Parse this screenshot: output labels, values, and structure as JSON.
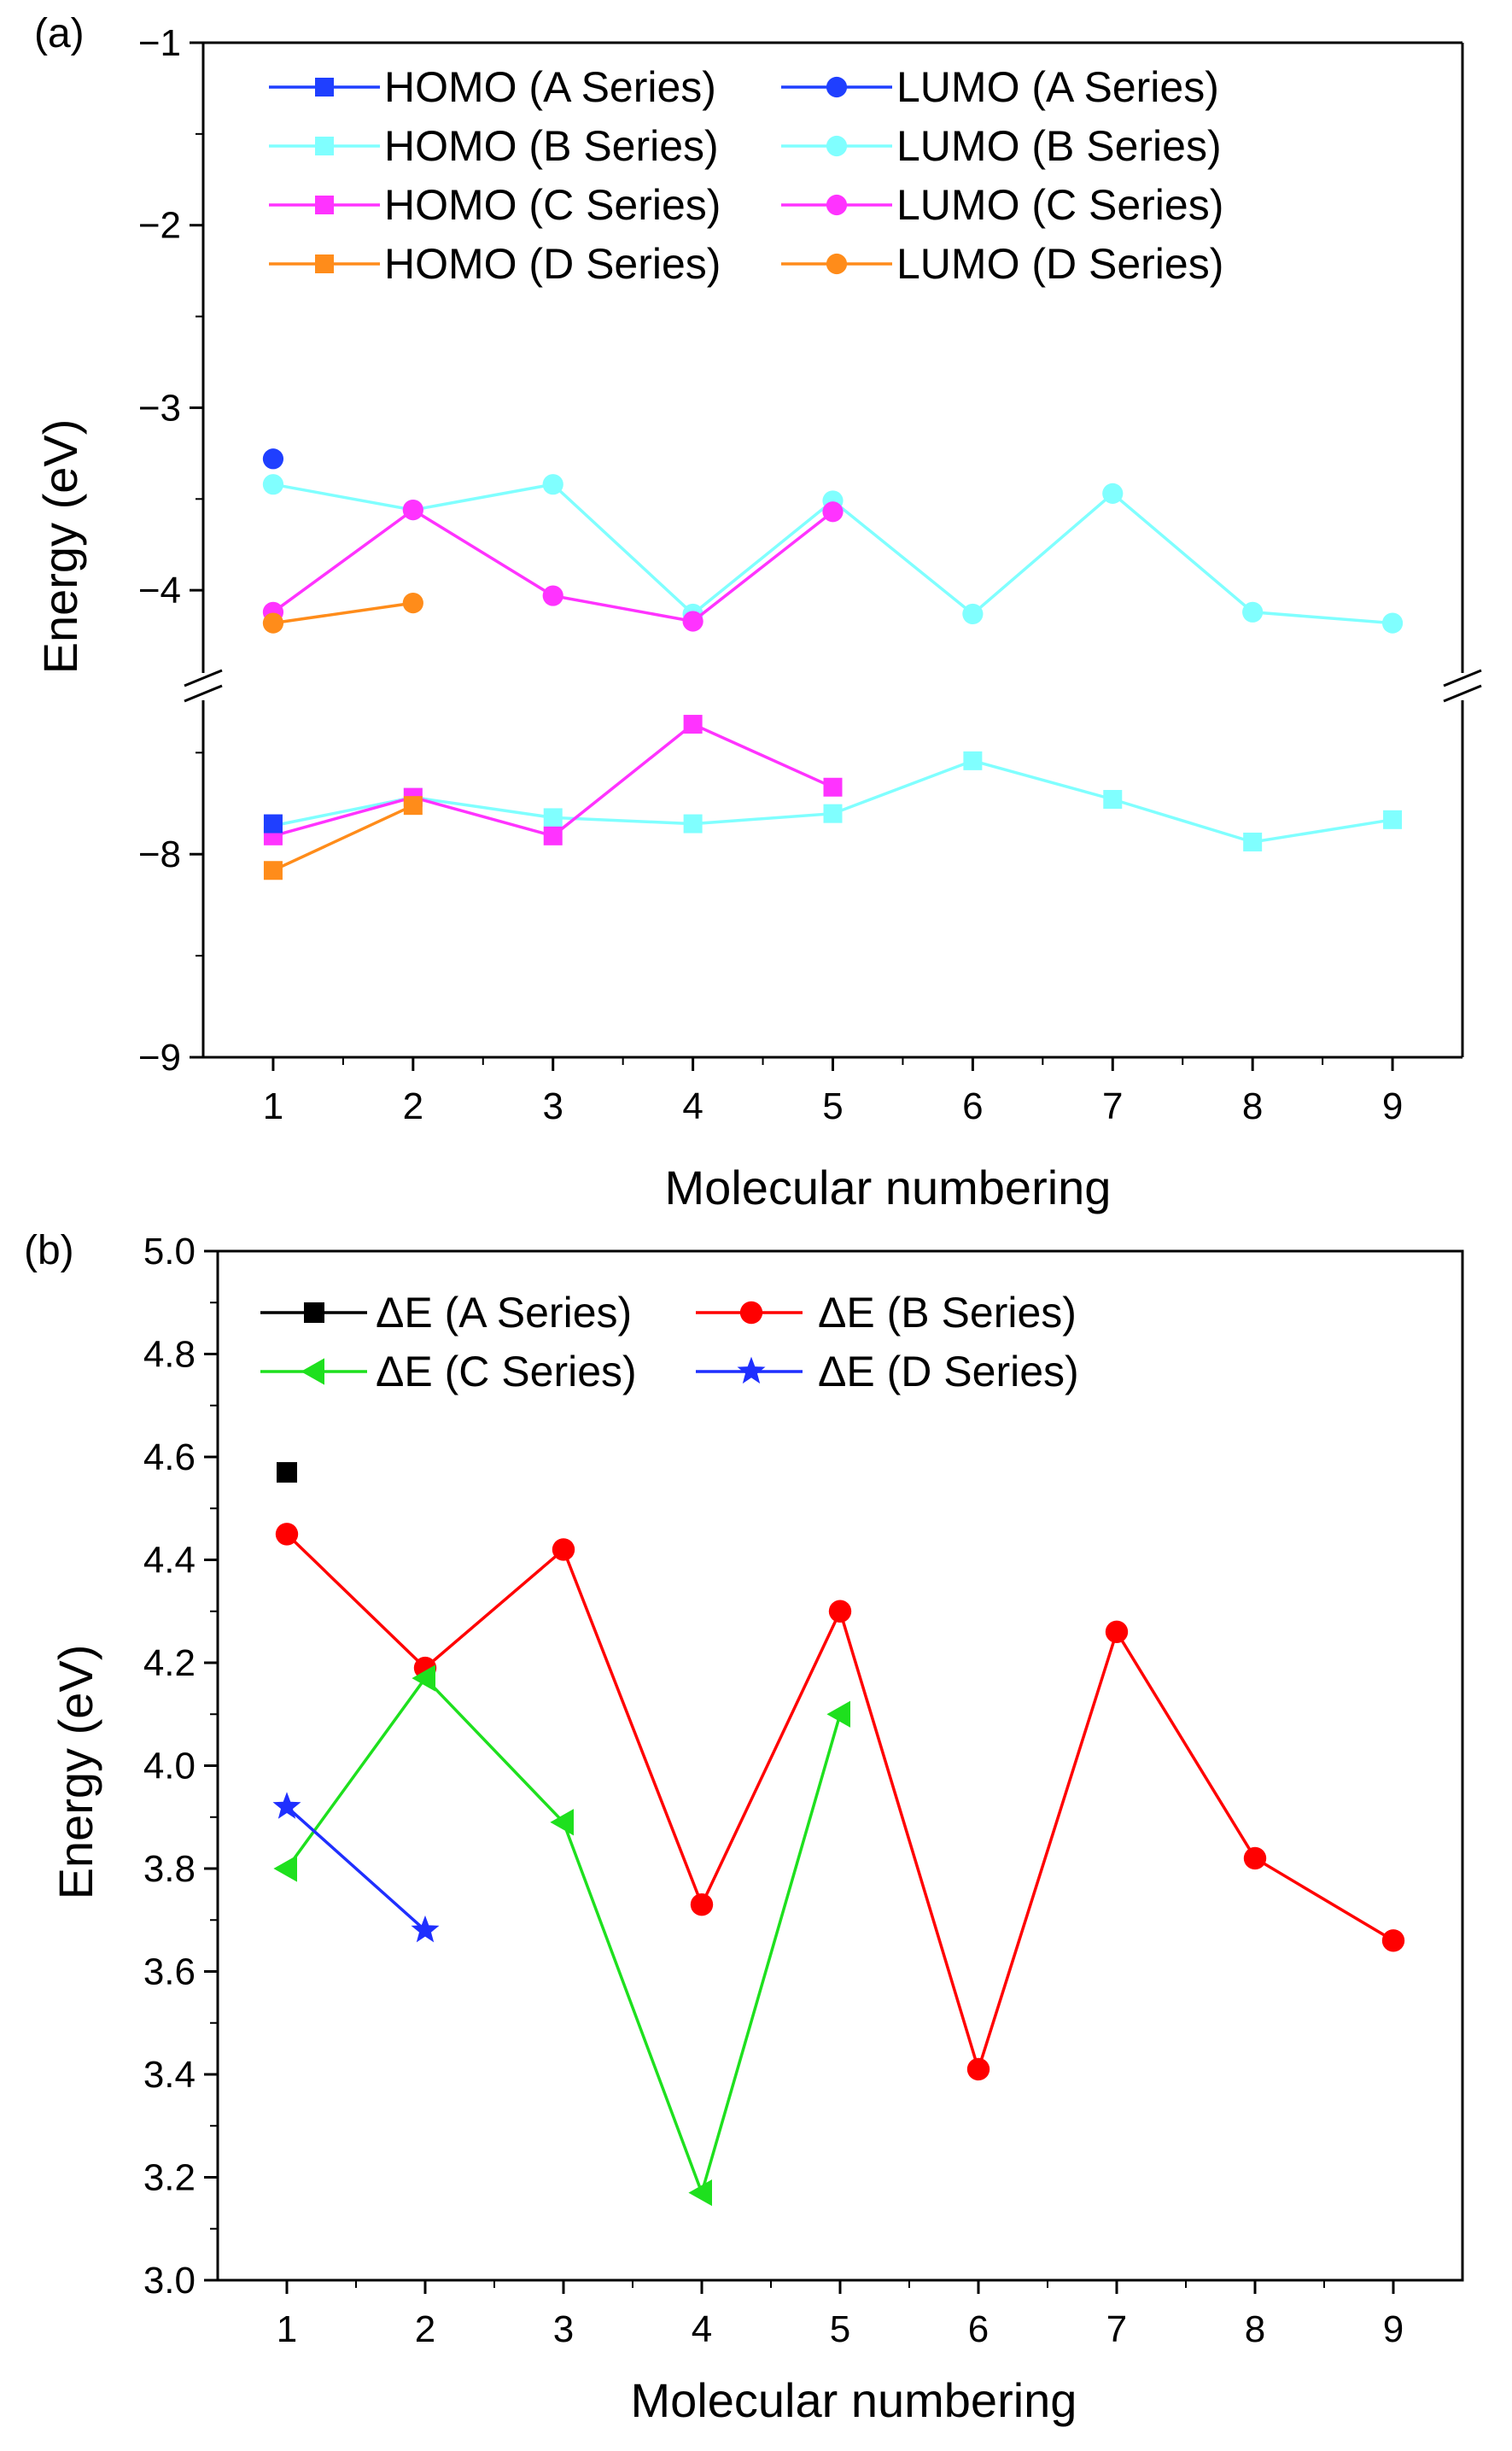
{
  "chart_data": [
    {
      "type": "line",
      "panel_label": "(a)",
      "xlabel": "Molecular numbering",
      "ylabel": "Energy (eV)",
      "xlim": [
        0.5,
        9.5
      ],
      "y_axis_break": true,
      "ylim_upper": [
        -4.5,
        -1
      ],
      "ylim_lower": [
        -9,
        -7.2
      ],
      "x_ticks": [
        "1",
        "2",
        "3",
        "4",
        "5",
        "6",
        "7",
        "8",
        "9"
      ],
      "y_ticks_upper": [
        "−1",
        "−2",
        "−3",
        "−4"
      ],
      "y_ticks_lower": [
        "−8",
        "−9"
      ],
      "legend_position": "top",
      "series": [
        {
          "name": "HOMO (A Series)",
          "color": "#1f3fff",
          "marker": "square",
          "x": [
            1
          ],
          "y": [
            -7.85
          ]
        },
        {
          "name": "HOMO (B Series)",
          "color": "#80ffff",
          "marker": "square",
          "x": [
            1,
            2,
            3,
            4,
            5,
            6,
            7,
            8,
            9
          ],
          "y": [
            -7.86,
            -7.72,
            -7.82,
            -7.85,
            -7.8,
            -7.54,
            -7.73,
            -7.94,
            -7.83
          ]
        },
        {
          "name": "HOMO (C Series)",
          "color": "#ff33ff",
          "marker": "square",
          "x": [
            1,
            2,
            3,
            4,
            5
          ],
          "y": [
            -7.91,
            -7.72,
            -7.91,
            -7.36,
            -7.67
          ]
        },
        {
          "name": "HOMO (D Series)",
          "color": "#ff8c1a",
          "marker": "square",
          "x": [
            1,
            2
          ],
          "y": [
            -8.08,
            -7.76
          ]
        },
        {
          "name": "LUMO (A Series)",
          "color": "#1f3fff",
          "marker": "circle",
          "x": [
            1
          ],
          "y": [
            -3.28
          ]
        },
        {
          "name": "LUMO (B Series)",
          "color": "#80ffff",
          "marker": "circle",
          "x": [
            1,
            2,
            3,
            4,
            5,
            6,
            7,
            8,
            9
          ],
          "y": [
            -3.42,
            -3.56,
            -3.42,
            -4.13,
            -3.51,
            -4.13,
            -3.47,
            -4.12,
            -4.18
          ]
        },
        {
          "name": "LUMO (C Series)",
          "color": "#ff33ff",
          "marker": "circle",
          "x": [
            1,
            2,
            3,
            4,
            5
          ],
          "y": [
            -4.12,
            -3.56,
            -4.03,
            -4.17,
            -3.57
          ]
        },
        {
          "name": "LUMO (D Series)",
          "color": "#ff8c1a",
          "marker": "circle",
          "x": [
            1,
            2
          ],
          "y": [
            -4.18,
            -4.07
          ]
        }
      ]
    },
    {
      "type": "line",
      "panel_label": "(b)",
      "xlabel": "Molecular numbering",
      "ylabel": "Energy (eV)",
      "xlim": [
        0.5,
        9.5
      ],
      "ylim": [
        3.0,
        5.0
      ],
      "x_ticks": [
        "1",
        "2",
        "3",
        "4",
        "5",
        "6",
        "7",
        "8",
        "9"
      ],
      "y_ticks": [
        "3.0",
        "3.2",
        "3.4",
        "3.6",
        "3.8",
        "4.0",
        "4.2",
        "4.4",
        "4.6",
        "4.8",
        "5.0"
      ],
      "legend_position": "top-left",
      "series": [
        {
          "name": "ΔE (A Series)",
          "color": "#000000",
          "marker": "square",
          "x": [
            1
          ],
          "y": [
            4.57
          ]
        },
        {
          "name": "ΔE (B Series)",
          "color": "#ff0000",
          "marker": "circle",
          "x": [
            1,
            2,
            3,
            4,
            5,
            6,
            7,
            8,
            9
          ],
          "y": [
            4.45,
            4.19,
            4.42,
            3.73,
            4.3,
            3.41,
            4.26,
            3.82,
            3.66
          ]
        },
        {
          "name": "ΔE (C Series)",
          "color": "#1ee01e",
          "marker": "triangle-left",
          "x": [
            1,
            2,
            3,
            4,
            5
          ],
          "y": [
            3.8,
            4.17,
            3.89,
            3.17,
            4.1
          ]
        },
        {
          "name": "ΔE (D Series)",
          "color": "#1f2fff",
          "marker": "star",
          "x": [
            1,
            2
          ],
          "y": [
            3.92,
            3.68
          ]
        }
      ]
    }
  ]
}
